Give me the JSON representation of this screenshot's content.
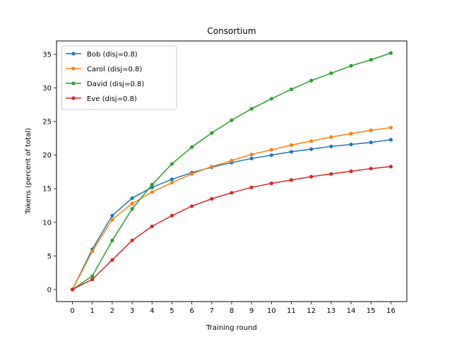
{
  "chart_data": {
    "type": "line",
    "title": "Consortium",
    "xlabel": "Training round",
    "ylabel": "Tokens (percent of total)",
    "x": [
      0,
      1,
      2,
      3,
      4,
      5,
      6,
      7,
      8,
      9,
      10,
      11,
      12,
      13,
      14,
      15,
      16
    ],
    "xlim": [
      -0.8,
      16.8
    ],
    "ylim": [
      -1.8,
      37.0
    ],
    "xticks": [
      0,
      1,
      2,
      3,
      4,
      5,
      6,
      7,
      8,
      9,
      10,
      11,
      12,
      13,
      14,
      15,
      16
    ],
    "yticks": [
      0,
      5,
      10,
      15,
      20,
      25,
      30,
      35
    ],
    "grid": false,
    "legend": "upper-left",
    "series": [
      {
        "name": "Bob (disj=0.8)",
        "color": "#1f77b4",
        "values": [
          0.0,
          6.0,
          11.0,
          13.6,
          15.2,
          16.4,
          17.4,
          18.2,
          18.9,
          19.5,
          20.0,
          20.5,
          20.9,
          21.3,
          21.6,
          21.9,
          22.3
        ]
      },
      {
        "name": "Carol (disj=0.8)",
        "color": "#ff7f0e",
        "values": [
          0.0,
          5.7,
          10.4,
          12.8,
          14.5,
          15.9,
          17.2,
          18.3,
          19.2,
          20.1,
          20.8,
          21.5,
          22.1,
          22.7,
          23.2,
          23.7,
          24.1
        ]
      },
      {
        "name": "David (disj=0.8)",
        "color": "#2ca02c",
        "values": [
          0.0,
          2.0,
          7.3,
          12.0,
          15.6,
          18.7,
          21.2,
          23.3,
          25.2,
          26.9,
          28.4,
          29.8,
          31.1,
          32.2,
          33.3,
          34.2,
          35.2
        ]
      },
      {
        "name": "Eve (disj=0.8)",
        "color": "#d62728",
        "values": [
          0.0,
          1.5,
          4.4,
          7.3,
          9.4,
          11.0,
          12.4,
          13.5,
          14.4,
          15.2,
          15.8,
          16.3,
          16.8,
          17.2,
          17.6,
          18.0,
          18.3
        ]
      }
    ]
  }
}
